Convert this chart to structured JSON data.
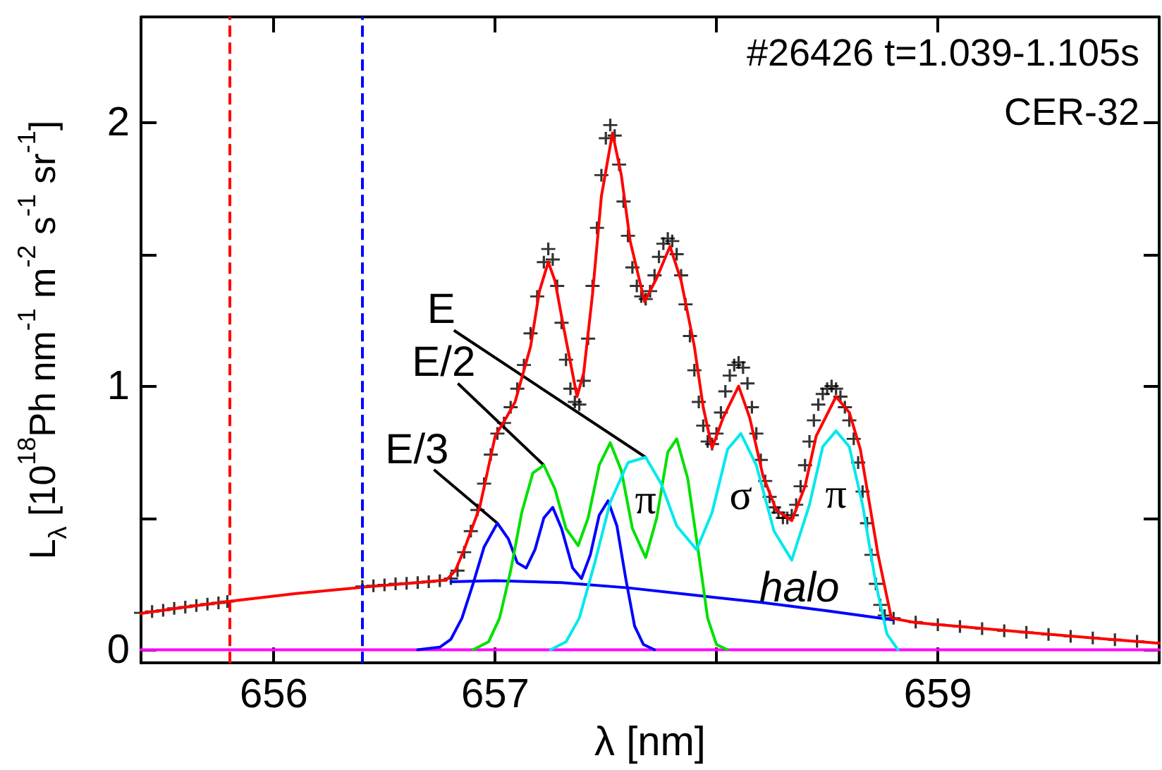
{
  "chart_data": {
    "type": "line",
    "xlabel": "λ [nm]",
    "ylabel": "L$_{λ}$ [10$^{18}$Ph nm$^{-1}$ m$^{-2}$ s$^{-1}$ sr$^{-1}$]",
    "xlim": [
      655.4,
      660
    ],
    "xticks": [
      656,
      657,
      {
        "value": 658,
        "label": null
      },
      659
    ],
    "ylim": [
      -0.05,
      2.4
    ],
    "yticks": [
      0,
      {
        "value": 0.5,
        "label": null
      },
      1,
      {
        "value": 1.5,
        "label": null
      },
      2
    ],
    "grid": false,
    "series": [
      {
        "color": "#ff00ff",
        "marker": "none",
        "x": [
          655.4,
          660
        ],
        "values": [
          0,
          0
        ]
      },
      {
        "color": "#0000ff",
        "marker": "none",
        "x": [
          656.8,
          657.0,
          657.3,
          657.6,
          657.9,
          658.2,
          658.5,
          658.8
        ],
        "values": [
          0.258,
          0.262,
          0.255,
          0.235,
          0.207,
          0.18,
          0.148,
          0.113
        ]
      },
      {
        "color": "#0000ff",
        "marker": "none",
        "x": [
          656.65,
          656.75,
          656.8,
          656.85,
          656.9,
          656.95,
          657.01,
          657.06,
          657.1,
          657.14,
          657.18,
          657.22,
          657.26,
          657.3,
          657.35,
          657.39,
          657.43,
          657.47,
          657.51,
          657.55,
          657.59,
          657.63,
          657.67,
          657.72
        ],
        "values": [
          0,
          0.01,
          0.04,
          0.12,
          0.25,
          0.39,
          0.48,
          0.42,
          0.33,
          0.31,
          0.38,
          0.5,
          0.54,
          0.46,
          0.31,
          0.27,
          0.36,
          0.51,
          0.565,
          0.47,
          0.27,
          0.09,
          0.02,
          0
        ]
      },
      {
        "color": "#00e000",
        "marker": "none",
        "x": [
          656.9,
          656.97,
          657.02,
          657.07,
          657.12,
          657.17,
          657.22,
          657.27,
          657.32,
          657.375,
          657.42,
          657.47,
          657.52,
          657.57,
          657.62,
          657.68,
          657.73,
          657.78,
          657.82,
          657.87,
          657.92,
          657.96,
          658.0,
          658.05
        ],
        "values": [
          0,
          0.03,
          0.12,
          0.3,
          0.52,
          0.67,
          0.7,
          0.61,
          0.46,
          0.395,
          0.5,
          0.7,
          0.785,
          0.68,
          0.46,
          0.35,
          0.5,
          0.75,
          0.8,
          0.65,
          0.36,
          0.12,
          0.02,
          0
        ]
      },
      {
        "color": "#00e8ee",
        "marker": "none",
        "x": [
          657.25,
          657.32,
          657.38,
          657.45,
          657.52,
          657.6,
          657.68,
          657.75,
          657.82,
          657.91,
          657.98,
          658.05,
          658.11,
          658.18,
          658.26,
          658.34,
          658.42,
          658.48,
          658.54,
          658.6,
          658.66,
          658.72,
          658.77,
          658.82
        ],
        "values": [
          0,
          0.03,
          0.12,
          0.33,
          0.56,
          0.71,
          0.73,
          0.63,
          0.47,
          0.38,
          0.52,
          0.76,
          0.82,
          0.7,
          0.45,
          0.34,
          0.55,
          0.77,
          0.83,
          0.77,
          0.55,
          0.25,
          0.06,
          0
        ]
      },
      {
        "type": "scatter",
        "color": "#000000",
        "marker": "cross",
        "x": [
          655.4,
          655.45,
          655.5,
          655.55,
          655.6,
          655.65,
          655.7,
          655.75,
          655.79,
          656.4,
          656.45,
          656.5,
          656.55,
          656.6,
          656.65,
          656.7,
          656.75,
          656.8,
          656.83,
          656.86,
          656.89,
          656.92,
          656.95,
          656.98,
          657.01,
          657.04,
          657.07,
          657.1,
          657.13,
          657.16,
          657.19,
          657.22,
          657.24,
          657.26,
          657.28,
          657.3,
          657.32,
          657.34,
          657.36,
          657.38,
          657.4,
          657.42,
          657.44,
          657.46,
          657.48,
          657.5,
          657.52,
          657.54,
          657.56,
          657.58,
          657.6,
          657.62,
          657.64,
          657.66,
          657.68,
          657.7,
          657.72,
          657.74,
          657.76,
          657.78,
          657.8,
          657.82,
          657.84,
          657.86,
          657.88,
          657.9,
          657.92,
          657.94,
          657.96,
          657.98,
          658.0,
          658.02,
          658.04,
          658.06,
          658.08,
          658.1,
          658.12,
          658.14,
          658.16,
          658.18,
          658.2,
          658.22,
          658.24,
          658.26,
          658.28,
          658.3,
          658.32,
          658.34,
          658.36,
          658.38,
          658.4,
          658.42,
          658.44,
          658.46,
          658.48,
          658.5,
          658.52,
          658.54,
          658.56,
          658.58,
          658.6,
          658.62,
          658.64,
          658.66,
          658.68,
          658.7,
          658.72,
          658.74,
          658.76,
          658.8,
          658.9,
          659.0,
          659.1,
          659.2,
          659.3,
          659.4,
          659.5,
          659.6,
          659.7,
          659.8,
          659.9
        ],
        "values": [
          0.14,
          0.145,
          0.15,
          0.157,
          0.162,
          0.168,
          0.173,
          0.178,
          0.183,
          0.24,
          0.243,
          0.246,
          0.25,
          0.252,
          0.255,
          0.258,
          0.262,
          0.27,
          0.3,
          0.37,
          0.45,
          0.53,
          0.63,
          0.74,
          0.82,
          0.86,
          0.92,
          0.99,
          1.08,
          1.2,
          1.34,
          1.47,
          1.52,
          1.48,
          1.38,
          1.24,
          1.1,
          0.99,
          0.94,
          0.93,
          1.02,
          1.18,
          1.38,
          1.6,
          1.8,
          1.94,
          1.99,
          1.95,
          1.84,
          1.7,
          1.57,
          1.45,
          1.38,
          1.34,
          1.33,
          1.36,
          1.42,
          1.49,
          1.54,
          1.56,
          1.55,
          1.5,
          1.42,
          1.31,
          1.19,
          1.06,
          0.94,
          0.85,
          0.79,
          0.78,
          0.82,
          0.9,
          0.98,
          1.04,
          1.08,
          1.09,
          1.07,
          1.01,
          0.92,
          0.82,
          0.72,
          0.64,
          0.58,
          0.54,
          0.52,
          0.5,
          0.5,
          0.51,
          0.55,
          0.62,
          0.7,
          0.79,
          0.87,
          0.93,
          0.97,
          0.99,
          1.0,
          0.99,
          0.96,
          0.92,
          0.87,
          0.8,
          0.71,
          0.6,
          0.48,
          0.36,
          0.25,
          0.17,
          0.13,
          0.12,
          0.105,
          0.095,
          0.088,
          0.08,
          0.072,
          0.066,
          0.058,
          0.051,
          0.045,
          0.038,
          0.032
        ]
      },
      {
        "color": "#ff0000",
        "marker": "none",
        "x": [
          655.4,
          655.6,
          655.8,
          656.1,
          656.4,
          656.65,
          656.78,
          656.82,
          656.86,
          656.93,
          657.0,
          657.05,
          657.09,
          657.16,
          657.2,
          657.24,
          657.27,
          657.31,
          657.37,
          657.4,
          657.44,
          657.48,
          657.53,
          657.57,
          657.61,
          657.675,
          657.73,
          657.79,
          657.84,
          657.9,
          657.94,
          657.98,
          658.03,
          658.1,
          658.15,
          658.21,
          658.27,
          658.34,
          658.4,
          658.45,
          658.54,
          658.6,
          658.65,
          658.73,
          658.79,
          658.9,
          659.1,
          659.4,
          659.7,
          660
        ],
        "values": [
          0.138,
          0.162,
          0.184,
          0.213,
          0.237,
          0.255,
          0.265,
          0.3,
          0.38,
          0.54,
          0.81,
          0.88,
          0.94,
          1.15,
          1.36,
          1.47,
          1.4,
          1.22,
          0.96,
          1.05,
          1.35,
          1.72,
          1.96,
          1.8,
          1.55,
          1.32,
          1.41,
          1.53,
          1.4,
          1.15,
          0.92,
          0.765,
          0.88,
          1.0,
          0.88,
          0.66,
          0.53,
          0.49,
          0.62,
          0.81,
          0.96,
          0.9,
          0.76,
          0.36,
          0.12,
          0.103,
          0.088,
          0.066,
          0.045,
          0.025
        ]
      }
    ],
    "ref_lines": [
      {
        "axis": "x",
        "value": 655.8,
        "color": "#ff0000",
        "line_style": "dashed"
      },
      {
        "axis": "x",
        "value": 656.4,
        "color": "#0000ff",
        "line_style": "dashed"
      }
    ],
    "annotations": [
      "#26426 t=1.039-1.105s",
      "CER-32",
      {
        "text": "E",
        "x": 657.68,
        "y": 0.73
      },
      {
        "text": "E/2",
        "x": 657.22,
        "y": 0.7
      },
      {
        "text": "E/3",
        "x": 657.01,
        "y": 0.48
      },
      {
        "text": "π",
        "x": 657.68,
        "y": 0.73
      },
      {
        "text": "σ",
        "x": 658.11,
        "y": 0.82
      },
      {
        "text": "π",
        "x": 658.54,
        "y": 0.83
      },
      {
        "text": "halo",
        "x": 658.4,
        "y": 0.155
      }
    ]
  }
}
